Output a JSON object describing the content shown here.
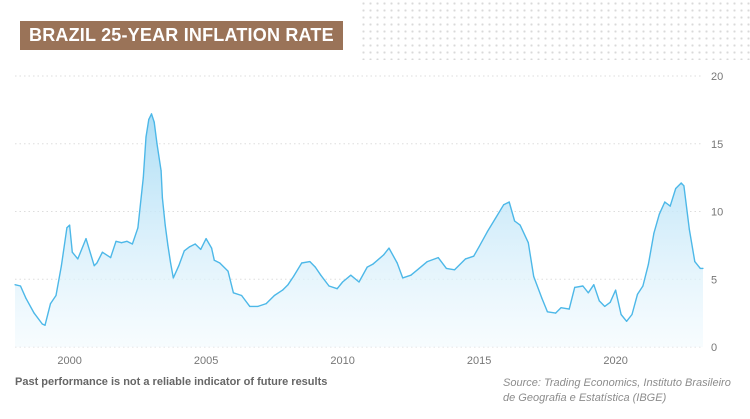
{
  "title": "BRAZIL 25-YEAR INFLATION RATE",
  "footnote": "Past performance is not a reliable indicator of future results",
  "source": "Source: Trading Economics, Instituto Brasileiro de Geografia e Estatística (IBGE)",
  "colors": {
    "line": "#4db8e8",
    "fill_top": "#a9dcf5",
    "fill_bottom": "#f2fafe",
    "badge": "#9a7358",
    "grid": "#dddddd",
    "axis_text": "#777777"
  },
  "chart_data": {
    "type": "area",
    "title": "BRAZIL 25-YEAR INFLATION RATE",
    "xlabel": "",
    "ylabel": "",
    "xlim": [
      1998.0,
      2023.2
    ],
    "ylim": [
      0,
      20
    ],
    "grid": true,
    "y_axis_position": "right",
    "x_ticks": [
      2000,
      2005,
      2010,
      2015,
      2020
    ],
    "y_ticks": [
      0,
      5,
      10,
      15,
      20
    ],
    "x": [
      1998.0,
      1998.2,
      1998.4,
      1998.7,
      1999.0,
      1999.1,
      1999.3,
      1999.5,
      1999.7,
      1999.9,
      2000.0,
      2000.1,
      2000.3,
      2000.6,
      2000.9,
      2001.0,
      2001.2,
      2001.5,
      2001.7,
      2001.9,
      2002.1,
      2002.3,
      2002.5,
      2002.7,
      2002.8,
      2002.9,
      2003.0,
      2003.1,
      2003.2,
      2003.35,
      2003.4,
      2003.5,
      2003.6,
      2003.7,
      2003.8,
      2004.0,
      2004.2,
      2004.4,
      2004.6,
      2004.8,
      2005.0,
      2005.2,
      2005.3,
      2005.5,
      2005.8,
      2006.0,
      2006.3,
      2006.6,
      2006.9,
      2007.2,
      2007.5,
      2007.8,
      2008.0,
      2008.2,
      2008.5,
      2008.8,
      2009.0,
      2009.2,
      2009.5,
      2009.8,
      2010.0,
      2010.3,
      2010.6,
      2010.9,
      2011.1,
      2011.5,
      2011.7,
      2012.0,
      2012.2,
      2012.5,
      2012.8,
      2013.1,
      2013.5,
      2013.8,
      2014.1,
      2014.5,
      2014.8,
      2015.0,
      2015.3,
      2015.6,
      2015.9,
      2016.1,
      2016.3,
      2016.5,
      2016.8,
      2017.0,
      2017.3,
      2017.5,
      2017.8,
      2018.0,
      2018.3,
      2018.5,
      2018.8,
      2019.0,
      2019.2,
      2019.4,
      2019.6,
      2019.8,
      2020.0,
      2020.2,
      2020.4,
      2020.6,
      2020.8,
      2021.0,
      2021.2,
      2021.4,
      2021.6,
      2021.8,
      2022.0,
      2022.2,
      2022.4,
      2022.5,
      2022.7,
      2022.9,
      2023.1,
      2023.2
    ],
    "series": [
      {
        "values": [
          4.6,
          4.5,
          3.6,
          2.5,
          1.7,
          1.6,
          3.2,
          3.8,
          6.0,
          8.8,
          9.0,
          7.0,
          6.5,
          8.0,
          6.0,
          6.2,
          7.0,
          6.6,
          7.8,
          7.7,
          7.8,
          7.6,
          8.8,
          12.5,
          15.5,
          16.8,
          17.2,
          16.6,
          15.0,
          13.0,
          11.0,
          9.0,
          7.5,
          6.2,
          5.1,
          6.0,
          7.1,
          7.4,
          7.6,
          7.2,
          8.0,
          7.3,
          6.4,
          6.2,
          5.6,
          4.0,
          3.8,
          3.0,
          3.0,
          3.2,
          3.8,
          4.2,
          4.6,
          5.2,
          6.2,
          6.3,
          5.9,
          5.3,
          4.5,
          4.3,
          4.8,
          5.3,
          4.8,
          5.9,
          6.1,
          6.8,
          7.3,
          6.2,
          5.1,
          5.3,
          5.8,
          6.3,
          6.6,
          5.8,
          5.7,
          6.5,
          6.7,
          7.4,
          8.5,
          9.5,
          10.5,
          10.7,
          9.3,
          9.0,
          7.7,
          5.2,
          3.6,
          2.6,
          2.5,
          2.9,
          2.8,
          4.4,
          4.5,
          4.0,
          4.6,
          3.4,
          3.0,
          3.3,
          4.2,
          2.4,
          1.9,
          2.4,
          3.9,
          4.5,
          6.1,
          8.4,
          9.8,
          10.7,
          10.4,
          11.7,
          12.1,
          11.9,
          8.7,
          6.3,
          5.8,
          5.8
        ]
      }
    ]
  }
}
